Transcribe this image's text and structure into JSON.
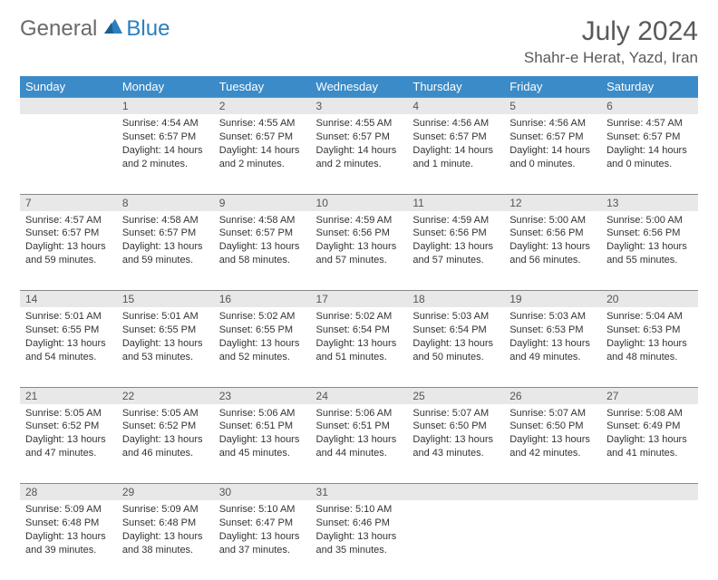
{
  "brand": {
    "part1": "General",
    "part2": "Blue"
  },
  "title": "July 2024",
  "location": "Shahr-e Herat, Yazd, Iran",
  "colors": {
    "header_bg": "#3b8bc8",
    "header_text": "#ffffff",
    "daynum_bg": "#e8e8e8",
    "daynum_border": "#888888",
    "text": "#333333",
    "title_text": "#5a5a5a"
  },
  "weekdays": [
    "Sunday",
    "Monday",
    "Tuesday",
    "Wednesday",
    "Thursday",
    "Friday",
    "Saturday"
  ],
  "weeks": [
    [
      null,
      {
        "n": "1",
        "sr": "4:54 AM",
        "ss": "6:57 PM",
        "dl": "14 hours and 2 minutes."
      },
      {
        "n": "2",
        "sr": "4:55 AM",
        "ss": "6:57 PM",
        "dl": "14 hours and 2 minutes."
      },
      {
        "n": "3",
        "sr": "4:55 AM",
        "ss": "6:57 PM",
        "dl": "14 hours and 2 minutes."
      },
      {
        "n": "4",
        "sr": "4:56 AM",
        "ss": "6:57 PM",
        "dl": "14 hours and 1 minute."
      },
      {
        "n": "5",
        "sr": "4:56 AM",
        "ss": "6:57 PM",
        "dl": "14 hours and 0 minutes."
      },
      {
        "n": "6",
        "sr": "4:57 AM",
        "ss": "6:57 PM",
        "dl": "14 hours and 0 minutes."
      }
    ],
    [
      {
        "n": "7",
        "sr": "4:57 AM",
        "ss": "6:57 PM",
        "dl": "13 hours and 59 minutes."
      },
      {
        "n": "8",
        "sr": "4:58 AM",
        "ss": "6:57 PM",
        "dl": "13 hours and 59 minutes."
      },
      {
        "n": "9",
        "sr": "4:58 AM",
        "ss": "6:57 PM",
        "dl": "13 hours and 58 minutes."
      },
      {
        "n": "10",
        "sr": "4:59 AM",
        "ss": "6:56 PM",
        "dl": "13 hours and 57 minutes."
      },
      {
        "n": "11",
        "sr": "4:59 AM",
        "ss": "6:56 PM",
        "dl": "13 hours and 57 minutes."
      },
      {
        "n": "12",
        "sr": "5:00 AM",
        "ss": "6:56 PM",
        "dl": "13 hours and 56 minutes."
      },
      {
        "n": "13",
        "sr": "5:00 AM",
        "ss": "6:56 PM",
        "dl": "13 hours and 55 minutes."
      }
    ],
    [
      {
        "n": "14",
        "sr": "5:01 AM",
        "ss": "6:55 PM",
        "dl": "13 hours and 54 minutes."
      },
      {
        "n": "15",
        "sr": "5:01 AM",
        "ss": "6:55 PM",
        "dl": "13 hours and 53 minutes."
      },
      {
        "n": "16",
        "sr": "5:02 AM",
        "ss": "6:55 PM",
        "dl": "13 hours and 52 minutes."
      },
      {
        "n": "17",
        "sr": "5:02 AM",
        "ss": "6:54 PM",
        "dl": "13 hours and 51 minutes."
      },
      {
        "n": "18",
        "sr": "5:03 AM",
        "ss": "6:54 PM",
        "dl": "13 hours and 50 minutes."
      },
      {
        "n": "19",
        "sr": "5:03 AM",
        "ss": "6:53 PM",
        "dl": "13 hours and 49 minutes."
      },
      {
        "n": "20",
        "sr": "5:04 AM",
        "ss": "6:53 PM",
        "dl": "13 hours and 48 minutes."
      }
    ],
    [
      {
        "n": "21",
        "sr": "5:05 AM",
        "ss": "6:52 PM",
        "dl": "13 hours and 47 minutes."
      },
      {
        "n": "22",
        "sr": "5:05 AM",
        "ss": "6:52 PM",
        "dl": "13 hours and 46 minutes."
      },
      {
        "n": "23",
        "sr": "5:06 AM",
        "ss": "6:51 PM",
        "dl": "13 hours and 45 minutes."
      },
      {
        "n": "24",
        "sr": "5:06 AM",
        "ss": "6:51 PM",
        "dl": "13 hours and 44 minutes."
      },
      {
        "n": "25",
        "sr": "5:07 AM",
        "ss": "6:50 PM",
        "dl": "13 hours and 43 minutes."
      },
      {
        "n": "26",
        "sr": "5:07 AM",
        "ss": "6:50 PM",
        "dl": "13 hours and 42 minutes."
      },
      {
        "n": "27",
        "sr": "5:08 AM",
        "ss": "6:49 PM",
        "dl": "13 hours and 41 minutes."
      }
    ],
    [
      {
        "n": "28",
        "sr": "5:09 AM",
        "ss": "6:48 PM",
        "dl": "13 hours and 39 minutes."
      },
      {
        "n": "29",
        "sr": "5:09 AM",
        "ss": "6:48 PM",
        "dl": "13 hours and 38 minutes."
      },
      {
        "n": "30",
        "sr": "5:10 AM",
        "ss": "6:47 PM",
        "dl": "13 hours and 37 minutes."
      },
      {
        "n": "31",
        "sr": "5:10 AM",
        "ss": "6:46 PM",
        "dl": "13 hours and 35 minutes."
      },
      null,
      null,
      null
    ]
  ],
  "labels": {
    "sunrise": "Sunrise: ",
    "sunset": "Sunset: ",
    "daylight": "Daylight: "
  }
}
